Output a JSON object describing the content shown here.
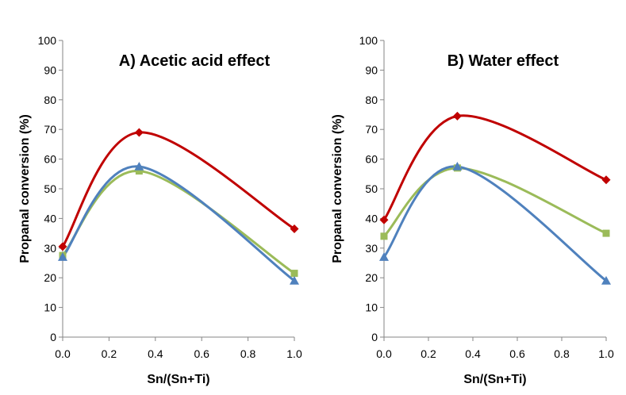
{
  "chart_data": [
    {
      "type": "line",
      "title": "A) Acetic acid effect",
      "xlabel": "Sn/(Sn+Ti)",
      "ylabel": "Propanal conversion (%)",
      "xlim": [
        0.0,
        1.0
      ],
      "ylim": [
        0,
        100
      ],
      "xticks": [
        "0.0",
        "0.2",
        "0.4",
        "0.6",
        "0.8",
        "1.0"
      ],
      "yticks": [
        "0",
        "10",
        "20",
        "30",
        "40",
        "50",
        "60",
        "70",
        "80",
        "90",
        "100"
      ],
      "grid": false,
      "series": [
        {
          "name": "red",
          "color": "#C00000",
          "marker": "diamond",
          "x": [
            0.0,
            0.33,
            1.0
          ],
          "values": [
            30.5,
            69,
            36.5
          ]
        },
        {
          "name": "green",
          "color": "#9BBB59",
          "marker": "square",
          "x": [
            0.0,
            0.33,
            1.0
          ],
          "values": [
            27.5,
            56,
            21.5
          ]
        },
        {
          "name": "blue",
          "color": "#4F81BD",
          "marker": "triangle",
          "x": [
            0.0,
            0.33,
            1.0
          ],
          "values": [
            27,
            57.5,
            19
          ]
        }
      ]
    },
    {
      "type": "line",
      "title": "B) Water effect",
      "xlabel": "Sn/(Sn+Ti)",
      "ylabel": "Propanal conversion (%)",
      "xlim": [
        0.0,
        1.0
      ],
      "ylim": [
        0,
        100
      ],
      "xticks": [
        "0.0",
        "0.2",
        "0.4",
        "0.6",
        "0.8",
        "1.0"
      ],
      "yticks": [
        "0",
        "10",
        "20",
        "30",
        "40",
        "50",
        "60",
        "70",
        "80",
        "90",
        "100"
      ],
      "grid": false,
      "series": [
        {
          "name": "red",
          "color": "#C00000",
          "marker": "diamond",
          "x": [
            0.0,
            0.33,
            1.0
          ],
          "values": [
            39.5,
            74.5,
            53
          ]
        },
        {
          "name": "green",
          "color": "#9BBB59",
          "marker": "square",
          "x": [
            0.0,
            0.33,
            1.0
          ],
          "values": [
            34,
            57,
            35
          ]
        },
        {
          "name": "blue",
          "color": "#4F81BD",
          "marker": "triangle",
          "x": [
            0.0,
            0.33,
            1.0
          ],
          "values": [
            27,
            57.5,
            19
          ]
        }
      ]
    }
  ]
}
